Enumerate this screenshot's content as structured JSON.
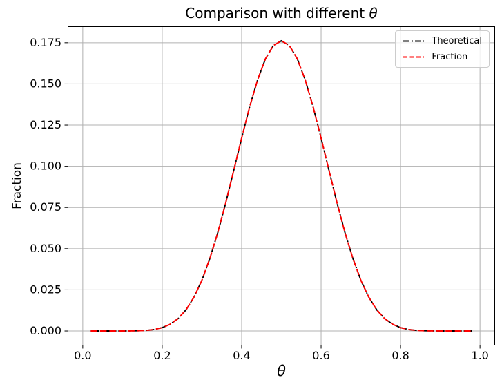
{
  "figure": {
    "title_prefix": "Comparison with different ",
    "title_math": "θ",
    "xlabel": "θ",
    "ylabel": "Fraction",
    "background_color": "#ffffff",
    "text_color": "#000000"
  },
  "chart_data": {
    "type": "line",
    "title": "Comparison with different θ",
    "xlabel": "θ",
    "ylabel": "Fraction",
    "grid": true,
    "grid_color": "#b0b0b0",
    "axes_edge_color": "#000000",
    "xlim": [
      -0.038,
      1.038
    ],
    "ylim": [
      -0.0088,
      0.185
    ],
    "xticks": {
      "values": [
        0.0,
        0.2,
        0.4,
        0.6,
        0.8,
        1.0
      ],
      "labels": [
        "0.0",
        "0.2",
        "0.4",
        "0.6",
        "0.8",
        "1.0"
      ]
    },
    "yticks": {
      "values": [
        0.0,
        0.025,
        0.05,
        0.075,
        0.1,
        0.125,
        0.15,
        0.175
      ],
      "labels": [
        "0.000",
        "0.025",
        "0.050",
        "0.075",
        "0.100",
        "0.125",
        "0.150",
        "0.175"
      ]
    },
    "legend": {
      "position": "upper right",
      "entries": [
        {
          "label": "Theoretical",
          "color": "#000000",
          "linestyle": "dashdot"
        },
        {
          "label": "Fraction",
          "color": "#ff0000",
          "linestyle": "dashed"
        }
      ]
    },
    "x": [
      0.02,
      0.04,
      0.06,
      0.08,
      0.1,
      0.12,
      0.14,
      0.16,
      0.18,
      0.2,
      0.22,
      0.24,
      0.26,
      0.28,
      0.3,
      0.32,
      0.34,
      0.36,
      0.38,
      0.4,
      0.42,
      0.44,
      0.46,
      0.48,
      0.5,
      0.52,
      0.54,
      0.56,
      0.58,
      0.6,
      0.62,
      0.64,
      0.66,
      0.68,
      0.7,
      0.72,
      0.74,
      0.76,
      0.78,
      0.8,
      0.82,
      0.84,
      0.86,
      0.88,
      0.9,
      0.92,
      0.94,
      0.96,
      0.98
    ],
    "series": [
      {
        "name": "Theoretical",
        "color": "#000000",
        "linestyle": "dashdot",
        "linewidth": 1.9,
        "values": [
          0,
          0,
          1e-07,
          9e-07,
          6.4e-06,
          3.19e-05,
          0.000118,
          0.000356,
          0.000908,
          0.002026,
          0.004096,
          0.007531,
          0.012857,
          0.020504,
          0.030817,
          0.044013,
          0.059875,
          0.077925,
          0.097428,
          0.117146,
          0.135999,
          0.152397,
          0.165274,
          0.173362,
          0.176197,
          0.173362,
          0.165274,
          0.152397,
          0.135999,
          0.117146,
          0.097428,
          0.077925,
          0.059875,
          0.044013,
          0.030817,
          0.020504,
          0.012857,
          0.007531,
          0.004096,
          0.002026,
          0.000908,
          0.000356,
          0.000118,
          3.19e-05,
          6.4e-06,
          9e-07,
          1e-07,
          0,
          0
        ]
      },
      {
        "name": "Fraction",
        "color": "#ff0000",
        "linestyle": "dashed",
        "linewidth": 1.9,
        "values": [
          0,
          0,
          1e-07,
          9e-07,
          6.4e-06,
          3.19e-05,
          0.000118,
          0.000356,
          0.000908,
          0.002026,
          0.004096,
          0.007531,
          0.012857,
          0.020504,
          0.030817,
          0.044013,
          0.059875,
          0.077925,
          0.097428,
          0.117146,
          0.135999,
          0.152397,
          0.165274,
          0.173362,
          0.176197,
          0.173362,
          0.165274,
          0.152397,
          0.135999,
          0.117146,
          0.097428,
          0.077925,
          0.059875,
          0.044013,
          0.030817,
          0.020504,
          0.012857,
          0.007531,
          0.004096,
          0.002026,
          0.000908,
          0.000356,
          0.000118,
          3.19e-05,
          6.4e-06,
          9e-07,
          1e-07,
          0,
          0
        ]
      }
    ]
  }
}
